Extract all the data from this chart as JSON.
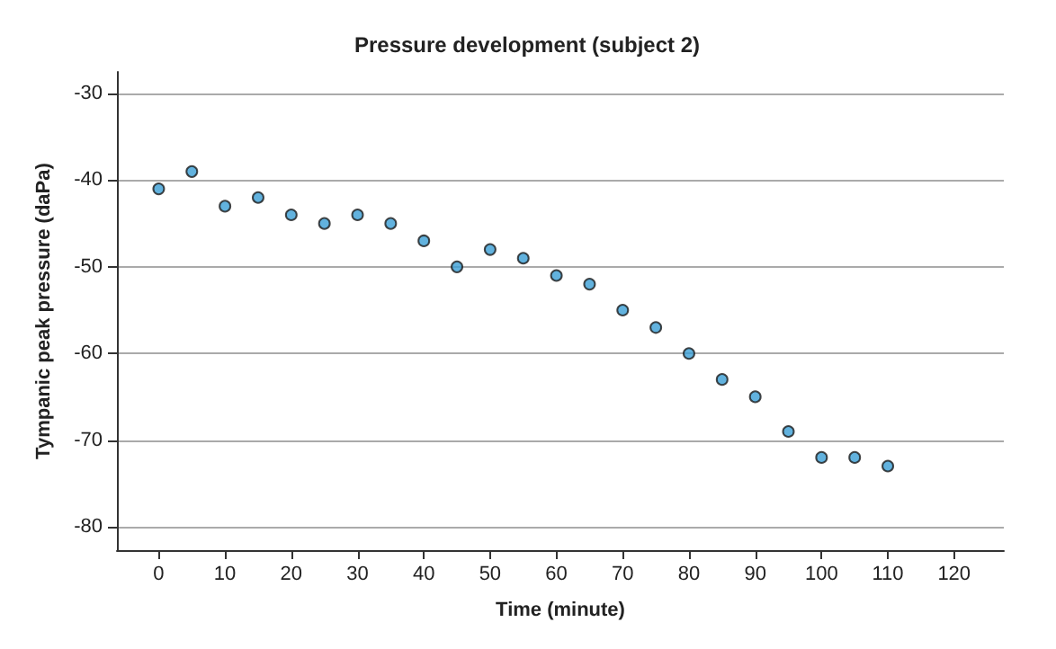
{
  "chart_data": {
    "type": "scatter",
    "title": "Pressure development (subject 2)",
    "xlabel": "Time (minute)",
    "ylabel": "Tympanic peak pressure (daPa)",
    "x": [
      0,
      5,
      10,
      15,
      20,
      25,
      30,
      35,
      40,
      45,
      50,
      55,
      60,
      65,
      70,
      75,
      80,
      85,
      90,
      95,
      100,
      105,
      110
    ],
    "series": [
      {
        "color": "#3b9fd6",
        "values": [
          -41,
          -39,
          -43,
          -42,
          -44,
          -45,
          -44,
          -45,
          -47,
          -50,
          -48,
          -49,
          -51,
          -52,
          -55,
          -57,
          -60,
          -63,
          -65,
          -69,
          -72,
          -72,
          -73
        ]
      }
    ],
    "xlim": [
      -6.3,
      127.5
    ],
    "xticks": [
      0,
      10,
      20,
      30,
      40,
      50,
      60,
      70,
      80,
      90,
      100,
      110,
      120
    ],
    "ylim": [
      -82.7,
      -27.5
    ],
    "yticks": [
      -80,
      -70,
      -60,
      -50,
      -40,
      -30
    ],
    "grid": "y",
    "marker": "circle"
  }
}
